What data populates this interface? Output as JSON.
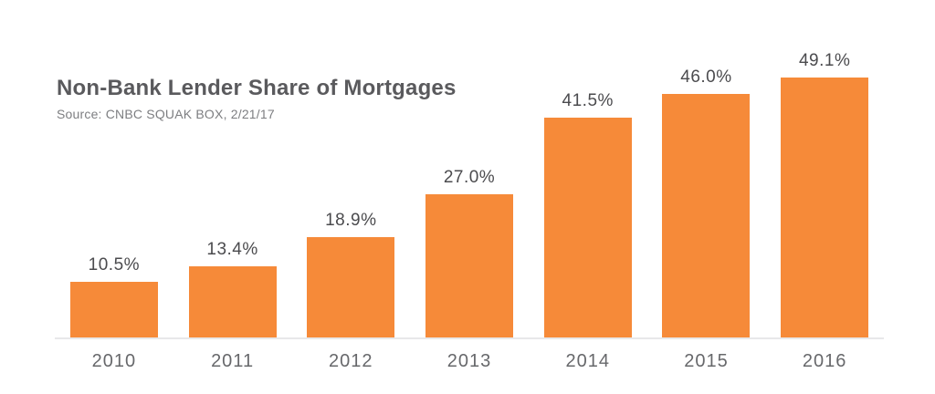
{
  "header": {
    "title": "Non-Bank Lender Share of Mortgages",
    "source": "Source: CNBC SQUAK BOX, 2/21/17"
  },
  "chart_data": {
    "type": "bar",
    "title": "Non-Bank Lender Share of Mortgages",
    "subtitle": "Source: CNBC SQUAK BOX, 2/21/17",
    "categories": [
      "2010",
      "2011",
      "2012",
      "2013",
      "2014",
      "2015",
      "2016"
    ],
    "values": [
      10.5,
      13.4,
      18.9,
      27.0,
      41.5,
      46.0,
      49.1
    ],
    "value_labels": [
      "10.5%",
      "13.4%",
      "18.9%",
      "27.0%",
      "41.5%",
      "46.0%",
      "49.1%"
    ],
    "xlabel": "",
    "ylabel": "",
    "ylim": [
      0,
      52
    ],
    "grid": false,
    "legend": "none",
    "bar_color": "#f68a39",
    "axis_line_color": "#e8e8ea",
    "label_color": "#4b4b4e",
    "tick_color": "#67686b"
  }
}
